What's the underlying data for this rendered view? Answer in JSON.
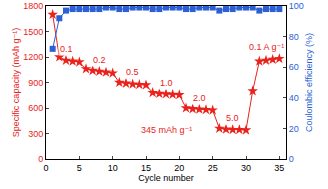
{
  "chart_data": {
    "type": "line",
    "x_label": "Cycle number",
    "y_label": "Specific capacity (mAh g⁻¹)",
    "y2_label": "Coulombic efficiency (%)",
    "x": [
      1,
      2,
      3,
      4,
      5,
      6,
      7,
      8,
      9,
      10,
      11,
      12,
      13,
      14,
      15,
      16,
      17,
      18,
      19,
      20,
      21,
      22,
      23,
      24,
      25,
      26,
      27,
      28,
      29,
      30,
      31,
      32,
      33,
      34,
      35
    ],
    "series": [
      {
        "name": "Specific capacity",
        "color": "#e8231c",
        "marker": "star",
        "line_style": "solid",
        "values": [
          1700,
          1200,
          1160,
          1150,
          1140,
          1060,
          1040,
          1030,
          1020,
          1010,
          900,
          890,
          880,
          875,
          870,
          780,
          770,
          765,
          760,
          755,
          600,
          590,
          585,
          580,
          575,
          360,
          350,
          345,
          345,
          340,
          800,
          1150,
          1160,
          1170,
          1180
        ]
      },
      {
        "name": "Coulombic efficiency",
        "color": "#2a5fd6",
        "marker": "square",
        "line_style": "solid",
        "axis": "y2",
        "values": [
          72,
          92,
          97,
          98,
          98,
          98,
          98,
          98,
          99,
          99,
          98,
          98,
          99,
          99,
          99,
          98,
          98,
          99,
          99,
          99,
          98,
          98,
          99,
          99,
          99,
          97,
          98,
          98,
          99,
          99,
          99,
          97,
          98,
          98,
          98
        ]
      }
    ],
    "xlim": [
      0,
      36
    ],
    "xticks": [
      0,
      5,
      10,
      15,
      20,
      25,
      30,
      35
    ],
    "ylim": [
      0,
      1800
    ],
    "yticks": [
      0,
      300,
      600,
      900,
      1200,
      1500,
      1800
    ],
    "y2lim": [
      0,
      100
    ],
    "y2ticks": [
      0,
      20,
      40,
      60,
      80,
      100
    ],
    "annotations": [
      {
        "text": "0.1",
        "x": 3,
        "y": 1290
      },
      {
        "text": "0.2",
        "x": 8,
        "y": 1170
      },
      {
        "text": "0.5",
        "x": 13,
        "y": 1020
      },
      {
        "text": "1.0",
        "x": 18,
        "y": 900
      },
      {
        "text": "2.0",
        "x": 23,
        "y": 720
      },
      {
        "text": "5.0",
        "x": 28,
        "y": 480
      },
      {
        "text": "345 mAh g⁻¹",
        "x": 18,
        "y": 345
      },
      {
        "text": "0.1 A g⁻¹",
        "x": 33,
        "y": 1320
      }
    ],
    "grid": false
  }
}
